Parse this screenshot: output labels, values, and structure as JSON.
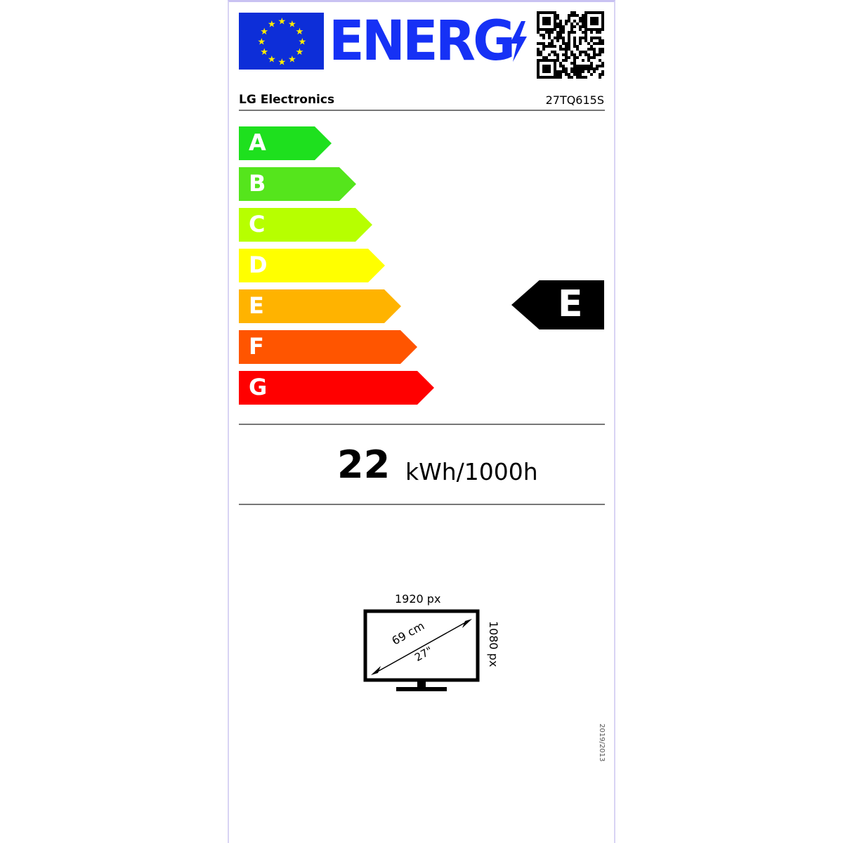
{
  "header": {
    "title": "ENERG",
    "flag_color": "#0d2ed8",
    "star_color": "#ffed00",
    "title_color": "#1631f5",
    "qr_code": "qr-code-icon"
  },
  "supplier": "LG Electronics",
  "model": "27TQ615S",
  "classes": [
    {
      "letter": "A",
      "color": "#1ee01e"
    },
    {
      "letter": "B",
      "color": "#55e51c"
    },
    {
      "letter": "C",
      "color": "#b7ff00"
    },
    {
      "letter": "D",
      "color": "#ffff00"
    },
    {
      "letter": "E",
      "color": "#ffb300"
    },
    {
      "letter": "F",
      "color": "#ff5500"
    },
    {
      "letter": "G",
      "color": "#ff0000"
    }
  ],
  "rating": "E",
  "energy": {
    "value": "22",
    "unit": "kWh/1000h"
  },
  "display": {
    "width_px": "1920 px",
    "height_px": "1080 px",
    "diagonal_cm": "69 cm",
    "diagonal_in": "27\""
  },
  "regulation": "2019/2013"
}
